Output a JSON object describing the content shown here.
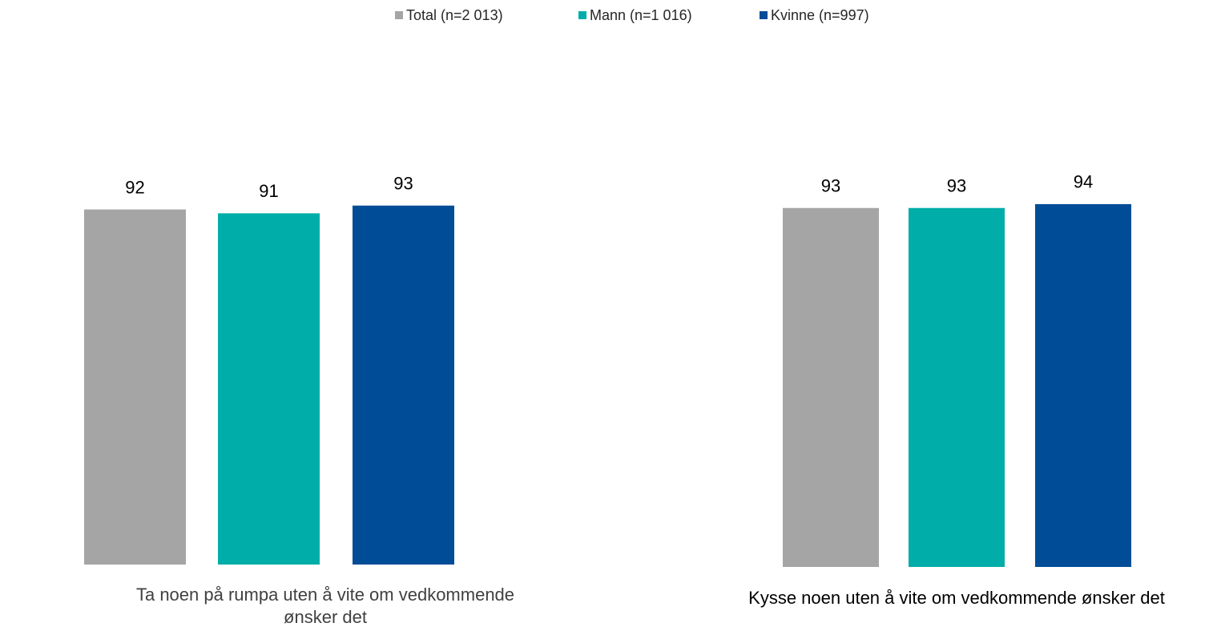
{
  "chart_data": {
    "type": "bar",
    "categories": [
      "Ta noen på rumpa uten å vite om vedkommende ønsker det",
      "Kysse noen uten å vite om vedkommende ønsker det"
    ],
    "series": [
      {
        "name": "Total (n=2 013)",
        "color": "#a5a5a5",
        "values": [
          92,
          93
        ]
      },
      {
        "name": "Mann (n=1 016)",
        "color": "#00ada9",
        "values": [
          91,
          93
        ]
      },
      {
        "name": "Kvinne (n=997)",
        "color": "#004c97",
        "values": [
          93,
          94
        ]
      }
    ],
    "ylim": [
      0,
      100
    ],
    "legend": "top"
  }
}
